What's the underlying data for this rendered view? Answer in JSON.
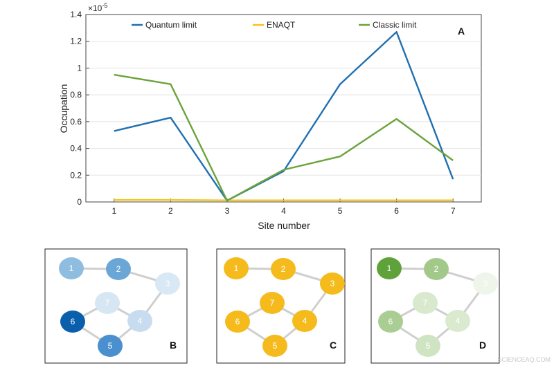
{
  "chart_data": [
    {
      "type": "line",
      "panel_label": "A",
      "exponent_label": "×10",
      "exponent_power": "-5",
      "xlabel": "Site number",
      "ylabel": "Occupation",
      "x": [
        1,
        2,
        3,
        4,
        5,
        6,
        7
      ],
      "xlim": [
        0.5,
        7.5
      ],
      "ylim": [
        0,
        1.4
      ],
      "yticks": [
        0,
        0.2,
        0.4,
        0.6,
        0.8,
        1,
        1.2,
        1.4
      ],
      "ytick_labels": [
        "0",
        "0.2",
        "0.4",
        "0.6",
        "0.8",
        "1",
        "1.2",
        "1.4"
      ],
      "xtick_labels": [
        "1",
        "2",
        "3",
        "4",
        "5",
        "6",
        "7"
      ],
      "grid": "horizontal",
      "legend_placement": "top",
      "series": [
        {
          "name": "Quantum limit",
          "color": "#1f6fb0",
          "values": [
            0.53,
            0.63,
            0.01,
            0.23,
            0.88,
            1.27,
            0.17
          ]
        },
        {
          "name": "ENAQT",
          "color": "#f5c518",
          "values": [
            0.015,
            0.015,
            0.012,
            0.012,
            0.012,
            0.012,
            0.012
          ]
        },
        {
          "name": "Classic limit",
          "color": "#6aa33a",
          "values": [
            0.95,
            0.88,
            0.01,
            0.24,
            0.34,
            0.62,
            0.31
          ]
        }
      ]
    },
    {
      "type": "network",
      "panel_label": "B",
      "node_labels": [
        "1",
        "2",
        "3",
        "4",
        "5",
        "6",
        "7"
      ],
      "node_colors": [
        "#8fbde0",
        "#6aa6d6",
        "#d9e8f5",
        "#c8dcef",
        "#4a8fce",
        "#0a5fad",
        "#d6e6f3"
      ],
      "edges": [
        [
          1,
          2
        ],
        [
          2,
          3
        ],
        [
          3,
          4
        ],
        [
          4,
          5
        ],
        [
          5,
          6
        ],
        [
          6,
          7
        ],
        [
          7,
          4
        ]
      ]
    },
    {
      "type": "network",
      "panel_label": "C",
      "node_labels": [
        "1",
        "2",
        "3",
        "4",
        "5",
        "6",
        "7"
      ],
      "node_colors": [
        "#f5bb1c",
        "#f5bb1c",
        "#f5bb1c",
        "#f5bb1c",
        "#f5bb1c",
        "#f5bb1c",
        "#f5bb1c"
      ],
      "edges": [
        [
          1,
          2
        ],
        [
          2,
          3
        ],
        [
          3,
          4
        ],
        [
          4,
          5
        ],
        [
          5,
          6
        ],
        [
          6,
          7
        ],
        [
          7,
          4
        ]
      ]
    },
    {
      "type": "network",
      "panel_label": "D",
      "node_labels": [
        "1",
        "2",
        "3",
        "4",
        "5",
        "6",
        "7"
      ],
      "node_colors": [
        "#5fa23a",
        "#a3c98a",
        "#eef5ea",
        "#d9eacf",
        "#cfe4c2",
        "#a9cd92",
        "#d8e9cd"
      ],
      "edges": [
        [
          1,
          2
        ],
        [
          2,
          3
        ],
        [
          3,
          4
        ],
        [
          4,
          5
        ],
        [
          5,
          6
        ],
        [
          6,
          7
        ],
        [
          7,
          4
        ]
      ]
    }
  ],
  "watermark": "SCIENCEAQ.COM"
}
